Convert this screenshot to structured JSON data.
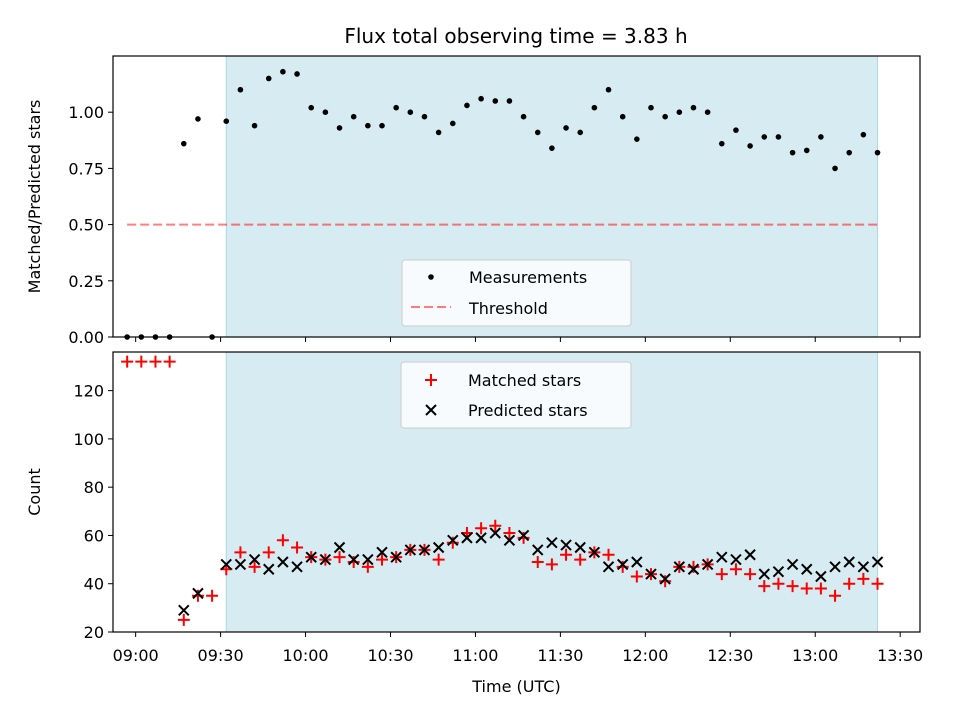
{
  "title": "Flux total observing time = 3.83 h",
  "colors": {
    "shade": "#add8e6",
    "measurement": "#000000",
    "threshold": "#ff0000",
    "matched": "#ff0000",
    "predicted": "#000000"
  },
  "chart_data": [
    {
      "type": "scatter",
      "ylabel": "Matched/Predicted stars",
      "xlim": [
        "08:52",
        "13:37"
      ],
      "ylim": [
        0,
        1.25
      ],
      "yticks": [
        "0.00",
        "0.25",
        "0.50",
        "0.75",
        "1.00"
      ],
      "shaded_interval": [
        "09:32",
        "13:22"
      ],
      "legend": {
        "position": "lower center",
        "entries": [
          "Measurements",
          "Threshold"
        ]
      },
      "threshold": {
        "name": "Threshold",
        "value": 0.5,
        "x_range": [
          "08:57",
          "13:22"
        ]
      },
      "series": [
        {
          "name": "Measurements",
          "x": [
            "08:57",
            "09:02",
            "09:07",
            "09:12",
            "09:17",
            "09:22",
            "09:27",
            "09:32",
            "09:37",
            "09:42",
            "09:47",
            "09:52",
            "09:57",
            "10:02",
            "10:07",
            "10:12",
            "10:17",
            "10:22",
            "10:27",
            "10:32",
            "10:37",
            "10:42",
            "10:47",
            "10:52",
            "10:57",
            "11:02",
            "11:07",
            "11:12",
            "11:17",
            "11:22",
            "11:27",
            "11:32",
            "11:37",
            "11:42",
            "11:47",
            "11:52",
            "11:57",
            "12:02",
            "12:07",
            "12:12",
            "12:17",
            "12:22",
            "12:27",
            "12:32",
            "12:37",
            "12:42",
            "12:47",
            "12:52",
            "12:57",
            "13:02",
            "13:07",
            "13:12",
            "13:17",
            "13:22"
          ],
          "values": [
            0,
            0,
            0,
            0,
            0.86,
            0.97,
            0,
            0.96,
            1.1,
            0.94,
            1.15,
            1.18,
            1.17,
            1.02,
            1.0,
            0.93,
            0.98,
            0.94,
            0.94,
            1.02,
            1.0,
            0.98,
            0.91,
            0.95,
            1.03,
            1.06,
            1.05,
            1.05,
            0.98,
            0.91,
            0.84,
            0.93,
            0.91,
            1.02,
            1.1,
            0.98,
            0.88,
            1.02,
            0.98,
            1.0,
            1.02,
            1.0,
            0.86,
            0.92,
            0.85,
            0.89,
            0.89,
            0.82,
            0.83,
            0.89,
            0.75,
            0.82,
            0.9,
            0.82
          ]
        }
      ]
    },
    {
      "type": "scatter",
      "xlabel": "Time (UTC)",
      "ylabel": "Count",
      "xlim": [
        "08:52",
        "13:37"
      ],
      "ylim": [
        20,
        136
      ],
      "xticks": [
        "09:00",
        "09:30",
        "10:00",
        "10:30",
        "11:00",
        "11:30",
        "12:00",
        "12:30",
        "13:00",
        "13:30"
      ],
      "yticks": [
        "20",
        "40",
        "60",
        "80",
        "100",
        "120"
      ],
      "shaded_interval": [
        "09:32",
        "13:22"
      ],
      "legend": {
        "position": "upper center",
        "entries": [
          "Matched stars",
          "Predicted stars"
        ]
      },
      "series": [
        {
          "name": "Matched stars",
          "x": [
            "08:57",
            "09:02",
            "09:07",
            "09:12",
            "09:17",
            "09:22",
            "09:27",
            "09:32",
            "09:37",
            "09:42",
            "09:47",
            "09:52",
            "09:57",
            "10:02",
            "10:07",
            "10:12",
            "10:17",
            "10:22",
            "10:27",
            "10:32",
            "10:37",
            "10:42",
            "10:47",
            "10:52",
            "10:57",
            "11:02",
            "11:07",
            "11:12",
            "11:17",
            "11:22",
            "11:27",
            "11:32",
            "11:37",
            "11:42",
            "11:47",
            "11:52",
            "11:57",
            "12:02",
            "12:07",
            "12:12",
            "12:17",
            "12:22",
            "12:27",
            "12:32",
            "12:37",
            "12:42",
            "12:47",
            "12:52",
            "12:57",
            "13:02",
            "13:07",
            "13:12",
            "13:17",
            "13:22"
          ],
          "values": [
            132,
            132,
            132,
            132,
            25,
            35,
            35,
            46,
            53,
            47,
            53,
            58,
            55,
            51,
            50,
            51,
            49,
            47,
            50,
            51,
            54,
            54,
            50,
            57,
            61,
            63,
            64,
            61,
            59,
            49,
            48,
            52,
            50,
            53,
            52,
            47,
            43,
            44,
            41,
            47,
            47,
            48,
            44,
            46,
            44,
            39,
            40,
            39,
            38,
            38,
            35,
            40,
            42,
            40
          ]
        },
        {
          "name": "Predicted stars",
          "x": [
            "09:17",
            "09:22",
            "09:32",
            "09:37",
            "09:42",
            "09:47",
            "09:52",
            "09:57",
            "10:02",
            "10:07",
            "10:12",
            "10:17",
            "10:22",
            "10:27",
            "10:32",
            "10:37",
            "10:42",
            "10:47",
            "10:52",
            "10:57",
            "11:02",
            "11:07",
            "11:12",
            "11:17",
            "11:22",
            "11:27",
            "11:32",
            "11:37",
            "11:42",
            "11:47",
            "11:52",
            "11:57",
            "12:02",
            "12:07",
            "12:12",
            "12:17",
            "12:22",
            "12:27",
            "12:32",
            "12:37",
            "12:42",
            "12:47",
            "12:52",
            "12:57",
            "13:02",
            "13:07",
            "13:12",
            "13:17",
            "13:22"
          ],
          "values": [
            29,
            36,
            48,
            48,
            50,
            46,
            49,
            47,
            51,
            50,
            55,
            50,
            50,
            53,
            51,
            54,
            54,
            55,
            58,
            59,
            59,
            61,
            58,
            60,
            54,
            57,
            56,
            55,
            53,
            47,
            48,
            49,
            44,
            42,
            47,
            46,
            48,
            51,
            50,
            52,
            44,
            45,
            48,
            46,
            43,
            47,
            49,
            47,
            49
          ]
        }
      ]
    }
  ]
}
